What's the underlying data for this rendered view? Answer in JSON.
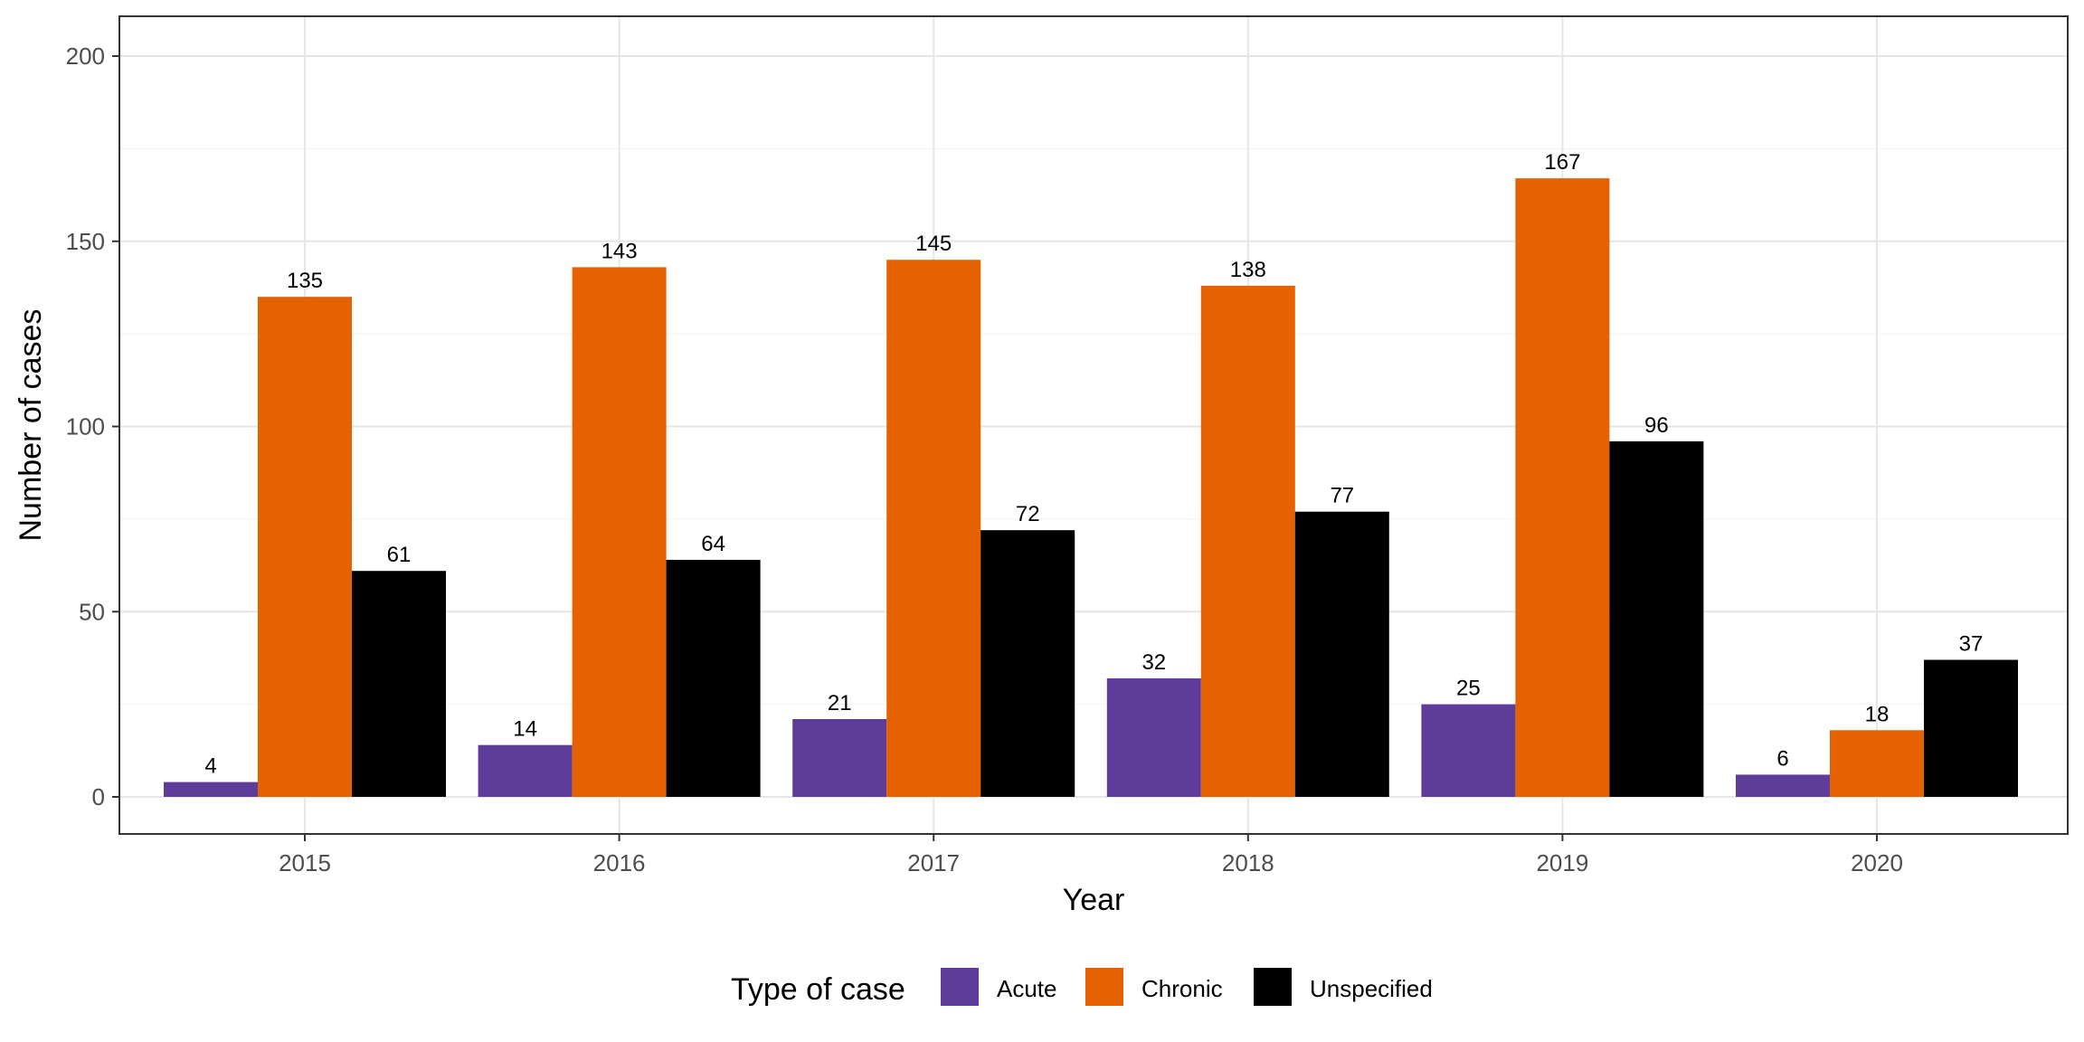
{
  "chart_data": {
    "type": "bar",
    "categories": [
      "2015",
      "2016",
      "2017",
      "2018",
      "2019",
      "2020"
    ],
    "series": [
      {
        "name": "Acute",
        "color": "#5e3c99",
        "values": [
          4,
          14,
          21,
          32,
          25,
          6
        ]
      },
      {
        "name": "Chronic",
        "color": "#e66101",
        "values": [
          135,
          143,
          145,
          138,
          167,
          18
        ]
      },
      {
        "name": "Unspecified",
        "color": "#000000",
        "values": [
          61,
          64,
          72,
          77,
          96,
          37
        ]
      }
    ],
    "xlabel": "Year",
    "ylabel": "Number of cases",
    "ylim": [
      0,
      200
    ],
    "yticks": [
      0,
      50,
      100,
      150,
      200
    ],
    "grid": true,
    "legend": {
      "title": "Type of case",
      "position": "bottom"
    },
    "data_labels": true
  }
}
